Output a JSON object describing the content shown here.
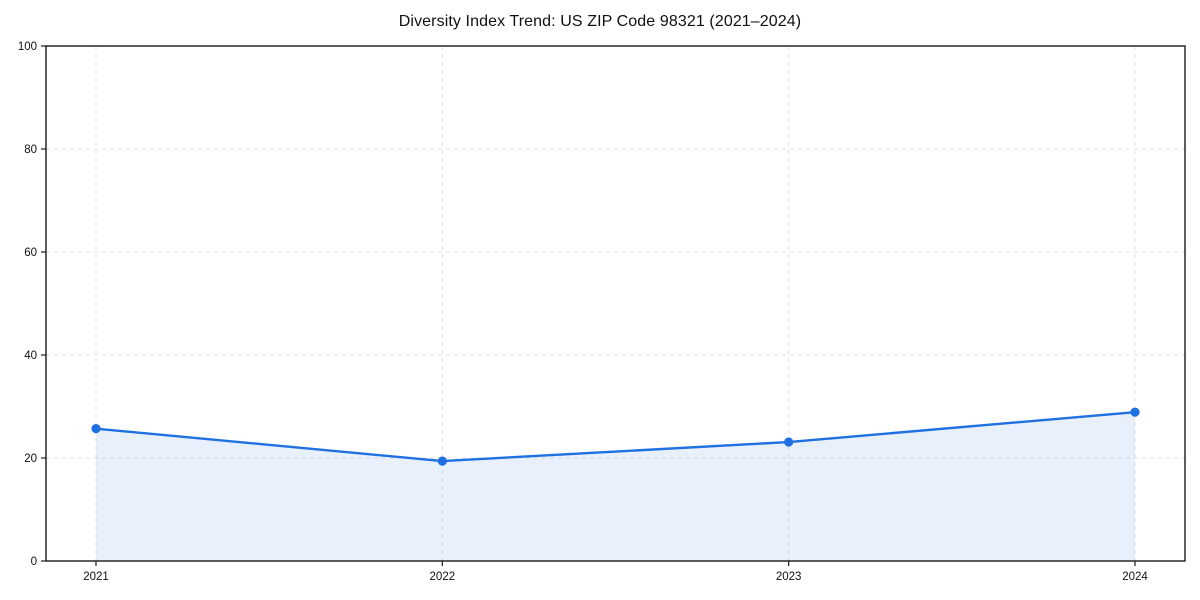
{
  "chart_data": {
    "type": "area",
    "title": "Diversity Index Trend: US ZIP Code 98321 (2021–2024)",
    "categories": [
      "2021",
      "2022",
      "2023",
      "2024"
    ],
    "values": [
      25.7,
      19.4,
      23.1,
      28.9
    ],
    "xlabel": "",
    "ylabel": "",
    "ylim": [
      0,
      100
    ],
    "yticks": [
      0,
      20,
      40,
      60,
      80,
      100
    ],
    "grid": "dashed",
    "legend_position": "none",
    "line_color": "#1f70e0",
    "marker_color": "#1f70e0",
    "fill_color": "#1f70e0",
    "fill_opacity": 0.1,
    "grid_color": "#e3e3e3",
    "spine_color": "#1a1a1a",
    "background_color": "#ffffff"
  }
}
